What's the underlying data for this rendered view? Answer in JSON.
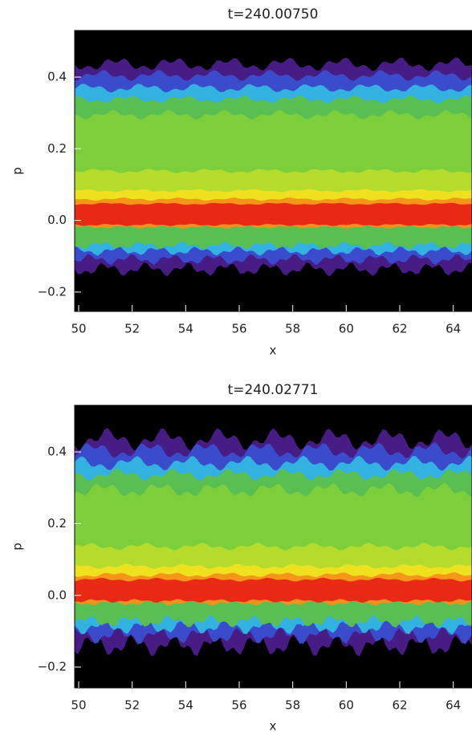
{
  "chart_data": [
    {
      "type": "heatmap",
      "title": "t=240.00750",
      "xlabel": "x",
      "ylabel": "p",
      "xlim": [
        49.85,
        64.7
      ],
      "ylim": [
        -0.254,
        0.53
      ],
      "xticks": [
        50,
        52,
        54,
        56,
        58,
        60,
        62,
        64
      ],
      "yticks": [
        {
          "value": -0.2,
          "label": "−0.2"
        },
        {
          "value": 0,
          "label": "0.0"
        },
        0.2,
        0.4
      ]
    },
    {
      "type": "heatmap",
      "title": "t=240.02771",
      "xlabel": "x",
      "ylabel": "p",
      "xlim": [
        49.85,
        64.7
      ],
      "ylim": [
        -0.258,
        0.53
      ],
      "xticks": [
        50,
        52,
        54,
        56,
        58,
        60,
        62,
        64
      ],
      "yticks": [
        {
          "value": -0.2,
          "label": "−0.2"
        },
        {
          "value": 0,
          "label": "0.0"
        },
        0.2,
        0.4
      ]
    }
  ]
}
